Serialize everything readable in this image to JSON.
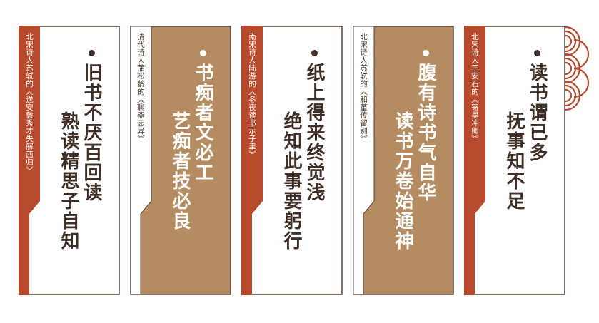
{
  "colors": {
    "red": "#b74a2d",
    "brown": "#b58b62",
    "dark_text": "#3f2f27",
    "light_text": "#ffffff"
  },
  "cards": [
    {
      "source": "北宋诗人苏轼的《送安敦秀才失解西归》",
      "line1": "旧书不厌百回读",
      "line2": "熟读精思子自知",
      "fill": "white",
      "tab": "red"
    },
    {
      "source": "清代诗人蒲松龄的《聊斋志异》",
      "line1": "书痴者文必工",
      "line2": "艺痴者技必良",
      "fill": "brown",
      "tab": "white"
    },
    {
      "source": "南宋诗人陆游的《冬夜读书示子聿》",
      "line1": "纸上得来终觉浅",
      "line2": "绝知此事要躬行",
      "fill": "white",
      "tab": "red"
    },
    {
      "source": "北宋诗人苏轼的《和董传留别》",
      "line1": "腹有诗书气自华",
      "line2": "读书万卷始通神",
      "fill": "brown",
      "tab": "white"
    },
    {
      "source": "北宋诗人王安石的《寄吴冲卿》",
      "line1": "读书谓已多",
      "line2": "抚事知不足",
      "fill": "white",
      "tab": "red"
    }
  ]
}
